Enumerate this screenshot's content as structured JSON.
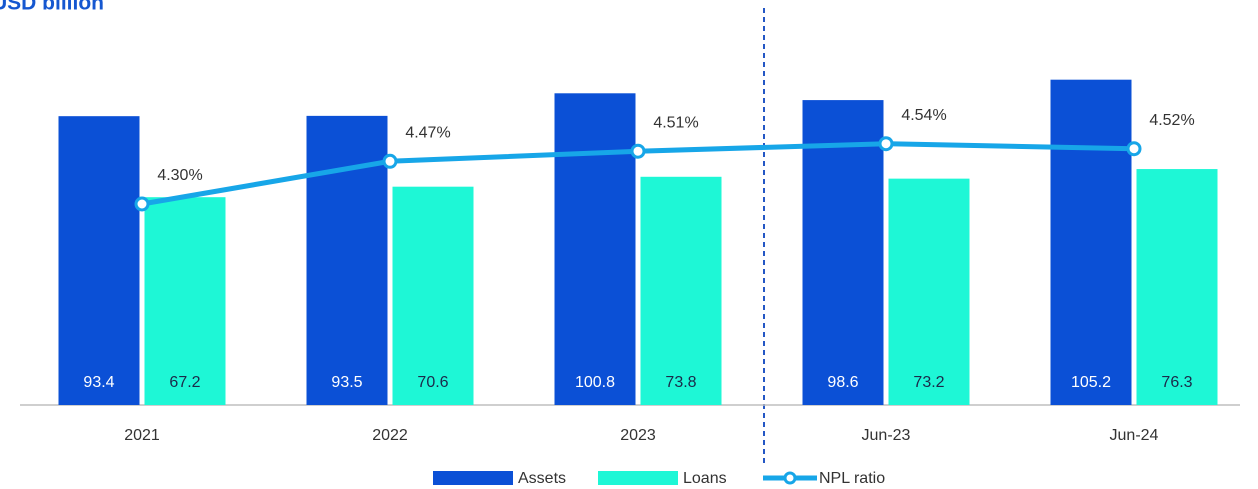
{
  "chart_data": {
    "type": "bar",
    "title": "USD billion",
    "categories": [
      "2021",
      "2022",
      "2023",
      "Jun-23",
      "Jun-24"
    ],
    "series": [
      {
        "name": "Assets",
        "color": "#0b50d6",
        "values": [
          93.4,
          93.5,
          100.8,
          98.6,
          105.2
        ]
      },
      {
        "name": "Loans",
        "color": "#1ef7d6",
        "values": [
          67.2,
          70.6,
          73.8,
          73.2,
          76.3
        ]
      },
      {
        "name": "NPL ratio",
        "type": "line",
        "axis": "y2",
        "color": "#17a6e8",
        "values": [
          4.3,
          4.47,
          4.51,
          4.54,
          4.52
        ],
        "value_labels": [
          "4.30%",
          "4.47%",
          "4.51%",
          "4.54%",
          "4.52%"
        ]
      }
    ],
    "ylim": [
      0,
      130
    ],
    "y2lim": [
      3.5,
      5.1
    ]
  }
}
